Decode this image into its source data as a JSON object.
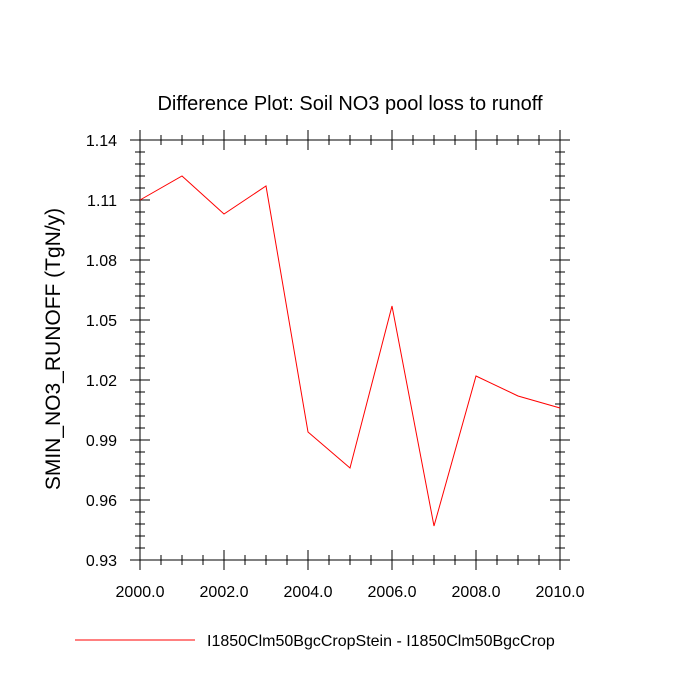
{
  "chart_data": {
    "type": "line",
    "title": "Difference Plot: Soil NO3 pool loss to runoff",
    "xlabel": "",
    "ylabel": "SMIN_NO3_RUNOFF  (TgN/y)",
    "xlim": [
      2000,
      2010
    ],
    "ylim": [
      0.93,
      1.14
    ],
    "xticks": [
      2000,
      2002,
      2004,
      2006,
      2008,
      2010
    ],
    "xtick_labels": [
      "2000.0",
      "2002.0",
      "2004.0",
      "2006.0",
      "2008.0",
      "2010.0"
    ],
    "yticks": [
      0.93,
      0.96,
      0.99,
      1.02,
      1.05,
      1.08,
      1.11,
      1.14
    ],
    "ytick_labels": [
      "0.93",
      "0.96",
      "0.99",
      "1.02",
      "1.05",
      "1.08",
      "1.11",
      "1.14"
    ],
    "grid": false,
    "legend_position": "bottom",
    "series": [
      {
        "name": "I1850Clm50BgcCropStein - I1850Clm50BgcCrop",
        "color": "#ff0000",
        "x": [
          2000,
          2001,
          2002,
          2003,
          2004,
          2005,
          2006,
          2007,
          2008,
          2009,
          2010
        ],
        "y": [
          1.11,
          1.122,
          1.103,
          1.117,
          0.994,
          0.976,
          1.057,
          0.947,
          1.022,
          1.012,
          1.006
        ]
      }
    ]
  }
}
